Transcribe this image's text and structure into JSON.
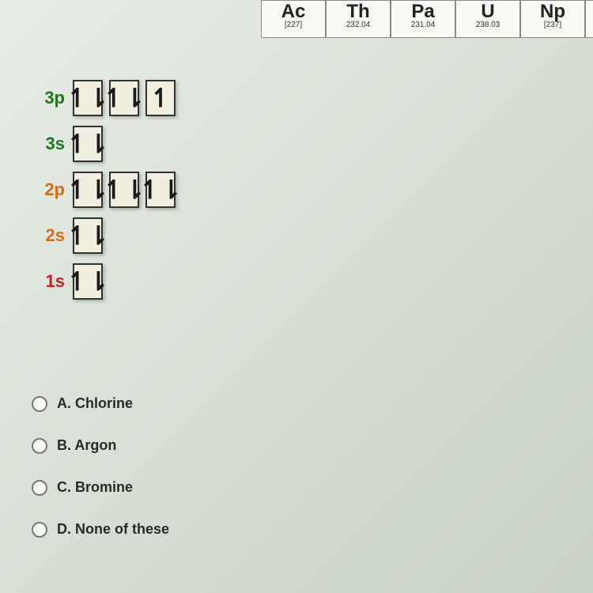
{
  "periodic": [
    {
      "symbol": "Ac",
      "mass": "[227]",
      "dash": "--"
    },
    {
      "symbol": "Th",
      "mass": "232.04",
      "dash": "--"
    },
    {
      "symbol": "Pa",
      "mass": "231.04",
      "dash": "--"
    },
    {
      "symbol": "U",
      "mass": "238.03",
      "dash": "--"
    },
    {
      "symbol": "Np",
      "mass": "[237]",
      "dash": "--"
    }
  ],
  "orbitals": [
    {
      "label": "3p",
      "color": "label-green",
      "boxes": [
        {
          "up": true,
          "down": true
        },
        {
          "up": true,
          "down": true
        },
        {
          "up": true,
          "down": false
        }
      ]
    },
    {
      "label": "3s",
      "color": "label-green",
      "boxes": [
        {
          "up": true,
          "down": true
        }
      ]
    },
    {
      "label": "2p",
      "color": "label-orange",
      "boxes": [
        {
          "up": true,
          "down": true
        },
        {
          "up": true,
          "down": true
        },
        {
          "up": true,
          "down": true
        }
      ]
    },
    {
      "label": "2s",
      "color": "label-orange",
      "boxes": [
        {
          "up": true,
          "down": true
        }
      ]
    },
    {
      "label": "1s",
      "color": "label-red",
      "boxes": [
        {
          "up": true,
          "down": true
        }
      ]
    }
  ],
  "answers": [
    {
      "letter": "A.",
      "text": "Chlorine"
    },
    {
      "letter": "B.",
      "text": "Argon"
    },
    {
      "letter": "C.",
      "text": "Bromine"
    },
    {
      "letter": "D.",
      "text": "None of these"
    }
  ]
}
